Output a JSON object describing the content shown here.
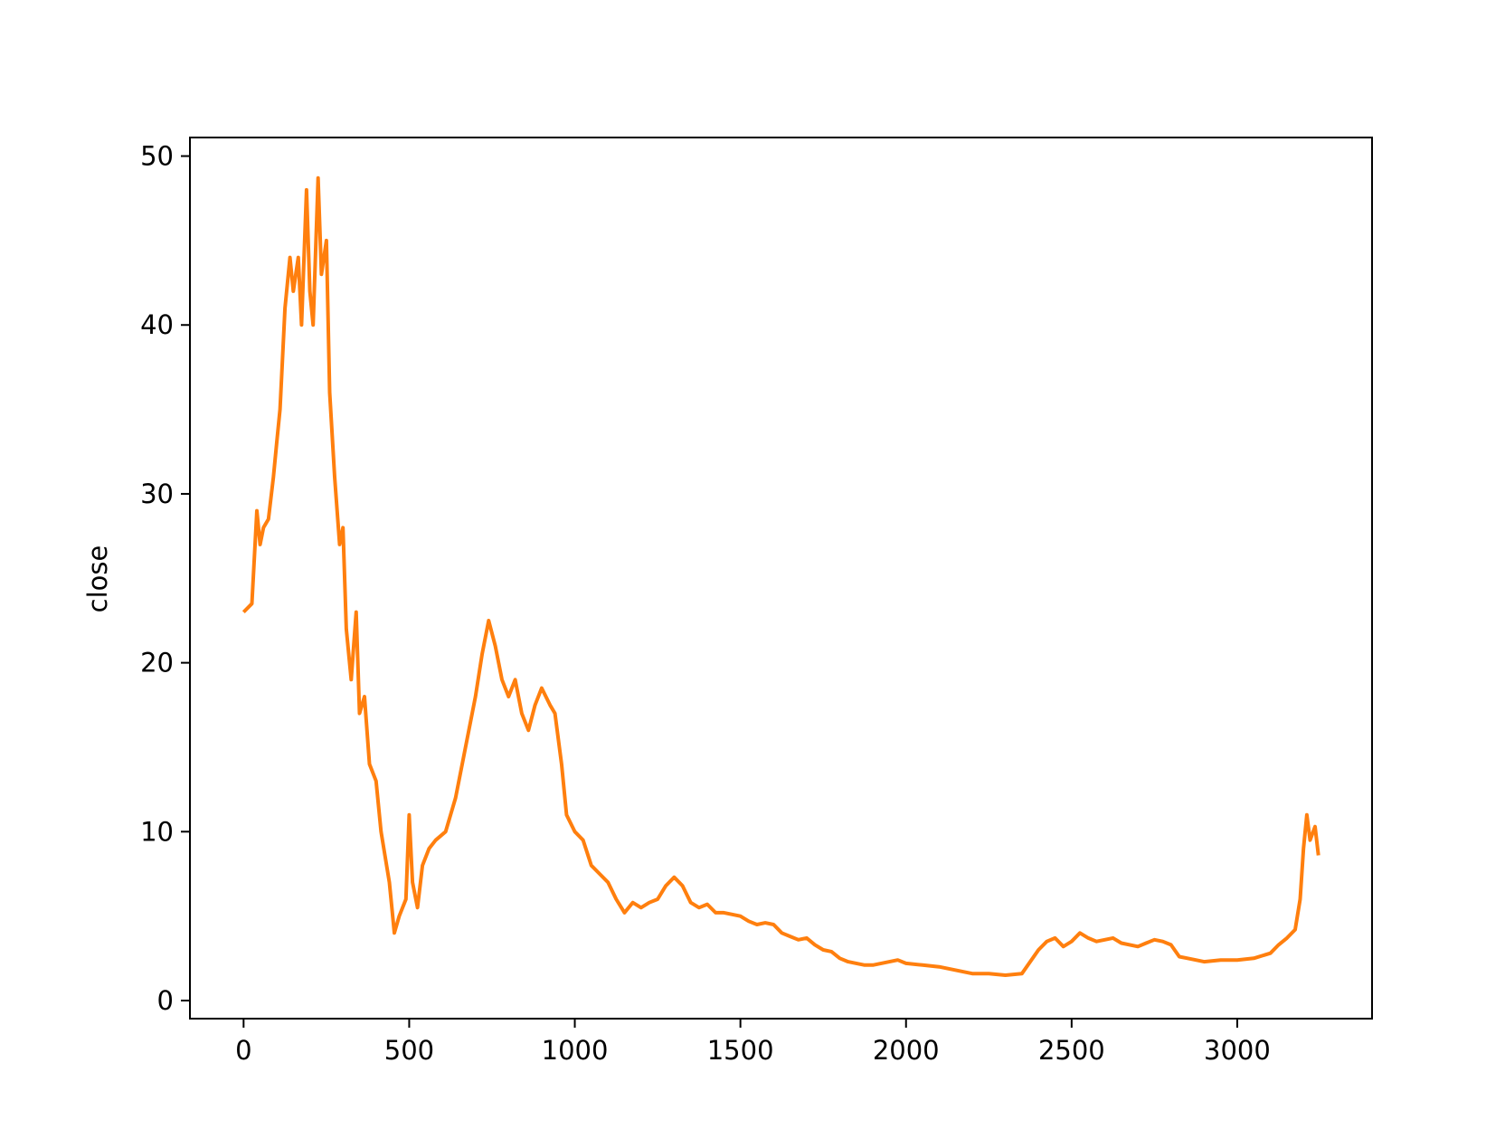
{
  "chart_data": {
    "type": "line",
    "ylabel": "close",
    "x": [
      0,
      25,
      40,
      50,
      60,
      75,
      90,
      100,
      110,
      125,
      140,
      150,
      165,
      175,
      190,
      200,
      210,
      225,
      235,
      250,
      260,
      275,
      290,
      300,
      310,
      325,
      340,
      350,
      365,
      380,
      400,
      415,
      440,
      455,
      470,
      490,
      500,
      510,
      525,
      540,
      560,
      580,
      610,
      640,
      670,
      700,
      720,
      740,
      760,
      780,
      800,
      820,
      840,
      860,
      880,
      900,
      925,
      940,
      960,
      975,
      1000,
      1025,
      1050,
      1075,
      1100,
      1125,
      1150,
      1175,
      1200,
      1225,
      1250,
      1275,
      1300,
      1325,
      1350,
      1375,
      1400,
      1425,
      1450,
      1475,
      1500,
      1525,
      1550,
      1575,
      1600,
      1625,
      1650,
      1675,
      1700,
      1725,
      1750,
      1775,
      1800,
      1825,
      1850,
      1875,
      1900,
      1925,
      1950,
      1975,
      2000,
      2050,
      2100,
      2150,
      2200,
      2250,
      2300,
      2350,
      2400,
      2425,
      2450,
      2475,
      2500,
      2525,
      2550,
      2575,
      2600,
      2625,
      2650,
      2700,
      2725,
      2750,
      2775,
      2800,
      2825,
      2850,
      2875,
      2900,
      2950,
      3000,
      3050,
      3100,
      3125,
      3150,
      3175,
      3190,
      3200,
      3210,
      3220,
      3235,
      3245
    ],
    "series": [
      {
        "name": "close",
        "color": "#ff7f0e",
        "values": [
          23,
          23.5,
          29,
          27,
          28,
          28.5,
          31,
          33,
          35,
          41,
          44,
          42,
          44,
          40,
          48,
          42,
          40,
          48.7,
          43,
          45,
          36,
          31,
          27,
          28,
          22,
          19,
          23,
          17,
          18,
          14,
          13,
          10,
          7,
          4,
          5,
          6,
          11,
          7,
          5.5,
          8,
          9,
          9.5,
          10,
          12,
          15,
          18,
          20.5,
          22.5,
          21,
          19,
          18,
          19,
          17,
          16,
          17.5,
          18.5,
          17.5,
          17,
          14,
          11,
          10,
          9.5,
          8,
          7.5,
          7,
          6,
          5.2,
          5.8,
          5.5,
          5.8,
          6,
          6.8,
          7.3,
          6.8,
          5.8,
          5.5,
          5.7,
          5.2,
          5.2,
          5.1,
          5,
          4.7,
          4.5,
          4.6,
          4.5,
          4,
          3.8,
          3.6,
          3.7,
          3.3,
          3,
          2.9,
          2.5,
          2.3,
          2.2,
          2.1,
          2.1,
          2.2,
          2.3,
          2.4,
          2.2,
          2.1,
          2,
          1.8,
          1.6,
          1.6,
          1.5,
          1.6,
          3,
          3.5,
          3.7,
          3.2,
          3.5,
          4,
          3.7,
          3.5,
          3.6,
          3.7,
          3.4,
          3.2,
          3.4,
          3.6,
          3.5,
          3.3,
          2.6,
          2.5,
          2.4,
          2.3,
          2.4,
          2.4,
          2.5,
          2.8,
          3.3,
          3.7,
          4.2,
          6,
          9,
          11,
          9.5,
          10.3,
          8.6
        ]
      }
    ],
    "xlim": [
      -162,
      3407
    ],
    "ylim": [
      -1.07,
      51.1
    ],
    "xticks": [
      0,
      500,
      1000,
      1500,
      2000,
      2500,
      3000
    ],
    "yticks": [
      0,
      10,
      20,
      30,
      40,
      50
    ]
  }
}
